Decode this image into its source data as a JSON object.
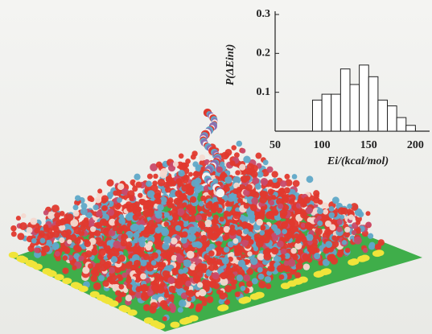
{
  "chart_data": {
    "type": "histogram",
    "xlabel": "Ei/(kcal/mol)",
    "ylabel": "P(ΔEint)",
    "bins": [
      90,
      100,
      110,
      120,
      130,
      140,
      150,
      160,
      170,
      180,
      190,
      200
    ],
    "values": [
      0.08,
      0.095,
      0.095,
      0.16,
      0.12,
      0.17,
      0.14,
      0.08,
      0.065,
      0.035,
      0.015
    ],
    "color": "#ffffff",
    "xlim": [
      50,
      210
    ],
    "xticks": [
      50,
      100,
      150,
      200
    ],
    "ylim": [
      0,
      0.3
    ],
    "yticks": [
      0.1,
      0.2,
      0.3
    ]
  }
}
